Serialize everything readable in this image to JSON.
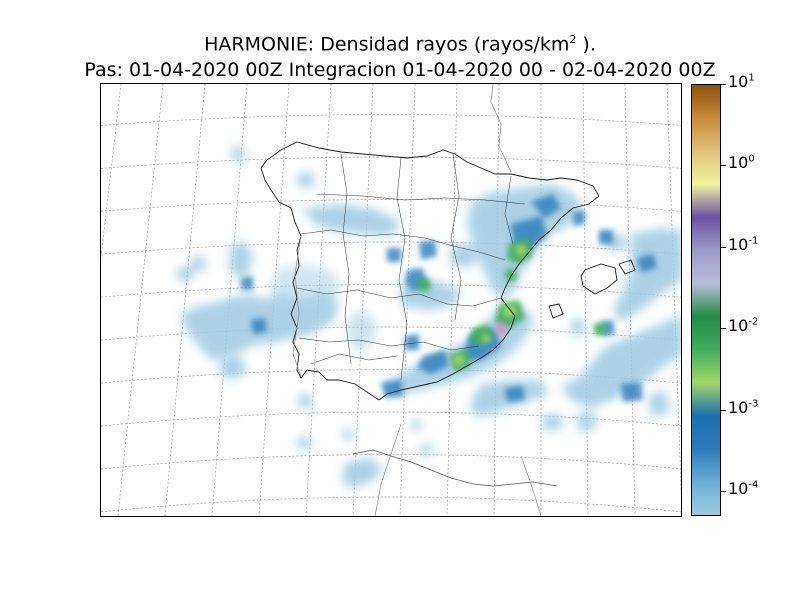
{
  "title": {
    "line1_main": "HARMONIE: Densidad rayos  (rayos/km",
    "line1_exp": "2",
    "line1_end": " ).",
    "line2": "Pas: 01-04-2020 00Z Integracion 01-04-2020 00 - 02-04-2020 00Z"
  },
  "colorbar": {
    "scale": "log",
    "range": [
      5e-05,
      10
    ],
    "ticks": [
      {
        "base": "10",
        "exp": "1"
      },
      {
        "base": "10",
        "exp": "0"
      },
      {
        "base": "10",
        "exp": "-1"
      },
      {
        "base": "10",
        "exp": "-2"
      },
      {
        "base": "10",
        "exp": "-3"
      },
      {
        "base": "10",
        "exp": "-4"
      }
    ],
    "colors": [
      "#9ecae1",
      "#6baed6",
      "#2b7bba",
      "#1e6fae",
      "#a1d76a",
      "#41ab5d",
      "#238b45",
      "#bcbddc",
      "#9e9ac8",
      "#6a51a3",
      "#f0f3a1",
      "#dfc27d",
      "#c8893a",
      "#8c510a"
    ]
  },
  "map": {
    "region": "Iberian Peninsula and Balearic Islands",
    "graticule": "dashed-grey",
    "color_low": "#9ecae1",
    "color_mid": "#2b7bba",
    "color_high": "#41ab5d",
    "color_peak": "#c994c7"
  }
}
